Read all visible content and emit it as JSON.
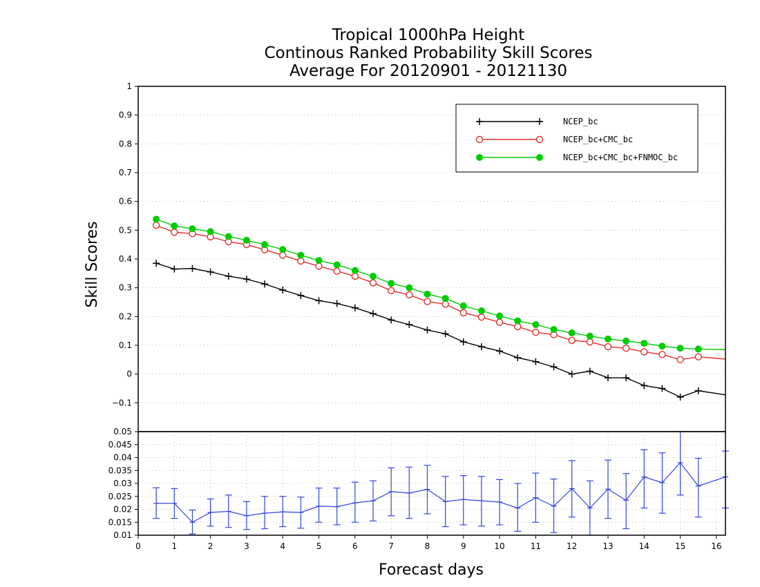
{
  "chart_data": [
    {
      "type": "line",
      "title": [
        "Tropical 1000hPa Height",
        "Continous Ranked Probability Skill Scores",
        "Average For 20120901 - 20121130"
      ],
      "ylabel": "Skill Scores",
      "ylim": [
        -0.2,
        1
      ],
      "yticks": [
        "1",
        "0.9",
        "0.8",
        "0.7",
        "0.6",
        "0.5",
        "0.4",
        "0.3",
        "0.2",
        "0.1",
        "0",
        "−0.1"
      ],
      "yticks_values": [
        1,
        0.9,
        0.8,
        0.7,
        0.6,
        0.5,
        0.4,
        0.3,
        0.2,
        0.1,
        0,
        -0.1
      ],
      "xlim": [
        0,
        16.25
      ],
      "grid": true,
      "legend_position": "top-right",
      "x": [
        0.5,
        1,
        1.5,
        2,
        2.5,
        3,
        3.5,
        4,
        4.5,
        5,
        5.5,
        6,
        6.5,
        7,
        7.5,
        8,
        8.5,
        9,
        9.5,
        10,
        10.5,
        11,
        11.5,
        12,
        12.5,
        13,
        13.5,
        14,
        14.5,
        15,
        15.5,
        16.25
      ],
      "series": [
        {
          "name": "NCEP_bc",
          "color": "#000000",
          "marker": "plus",
          "values": [
            0.385,
            0.365,
            0.367,
            0.355,
            0.34,
            0.33,
            0.313,
            0.292,
            0.273,
            0.255,
            0.245,
            0.23,
            0.21,
            0.188,
            0.172,
            0.153,
            0.14,
            0.112,
            0.095,
            0.08,
            0.057,
            0.043,
            0.025,
            0.0,
            0.01,
            -0.013,
            -0.013,
            -0.04,
            -0.05,
            -0.08,
            -0.058,
            -0.072
          ]
        },
        {
          "name": "NCEP_bc+CMC_bc",
          "color": "#e0302c",
          "marker": "open-circle",
          "values": [
            0.517,
            0.493,
            0.488,
            0.477,
            0.46,
            0.45,
            0.432,
            0.413,
            0.393,
            0.375,
            0.358,
            0.34,
            0.317,
            0.29,
            0.275,
            0.252,
            0.243,
            0.213,
            0.198,
            0.18,
            0.165,
            0.145,
            0.137,
            0.117,
            0.112,
            0.095,
            0.09,
            0.077,
            0.068,
            0.05,
            0.06,
            0.052
          ]
        },
        {
          "name": "NCEP_bc+CMC_bc+FNMOC_bc",
          "color": "#00cc00",
          "marker": "filled-circle",
          "values": [
            0.538,
            0.515,
            0.505,
            0.495,
            0.478,
            0.465,
            0.45,
            0.433,
            0.413,
            0.395,
            0.38,
            0.36,
            0.34,
            0.315,
            0.3,
            0.278,
            0.263,
            0.237,
            0.22,
            0.202,
            0.185,
            0.172,
            0.155,
            0.143,
            0.132,
            0.122,
            0.115,
            0.107,
            0.097,
            0.09,
            0.087,
            0.085
          ]
        }
      ]
    },
    {
      "type": "line",
      "xlabel": "Forecast days",
      "ylim": [
        0.01,
        0.05
      ],
      "yticks": [
        "0.05",
        "0.045",
        "0.04",
        "0.035",
        "0.03",
        "0.025",
        "0.02",
        "0.015",
        "0.01"
      ],
      "yticks_values": [
        0.05,
        0.045,
        0.04,
        0.035,
        0.03,
        0.025,
        0.02,
        0.015,
        0.01
      ],
      "xticks": [
        "0",
        "1",
        "2",
        "3",
        "4",
        "5",
        "6",
        "7",
        "8",
        "9",
        "10",
        "11",
        "12",
        "13",
        "14",
        "15",
        "16"
      ],
      "xticks_values": [
        0,
        1,
        2,
        3,
        4,
        5,
        6,
        7,
        8,
        9,
        10,
        11,
        12,
        13,
        14,
        15,
        16
      ],
      "xlim": [
        0,
        16.25
      ],
      "grid": true,
      "series": [
        {
          "color": "#3344dd",
          "error_bars": true,
          "x": [
            0.5,
            1,
            1.5,
            2,
            2.5,
            3,
            3.5,
            4,
            4.5,
            5,
            5.5,
            6,
            6.5,
            7,
            7.5,
            8,
            8.5,
            9,
            9.5,
            10,
            10.5,
            11,
            11.5,
            12,
            12.5,
            13,
            13.5,
            14,
            14.5,
            15,
            15.5,
            16.25
          ],
          "values": [
            0.0223,
            0.0223,
            0.015,
            0.0188,
            0.0192,
            0.0175,
            0.0185,
            0.019,
            0.0188,
            0.0212,
            0.021,
            0.0225,
            0.0233,
            0.0268,
            0.0263,
            0.0277,
            0.023,
            0.0238,
            0.0233,
            0.0228,
            0.0205,
            0.0245,
            0.0212,
            0.028,
            0.0205,
            0.0278,
            0.0235,
            0.0325,
            0.0303,
            0.038,
            0.029,
            0.0325
          ],
          "lower": [
            0.0165,
            0.0165,
            0.0105,
            0.0135,
            0.013,
            0.0122,
            0.0125,
            0.0133,
            0.0127,
            0.015,
            0.014,
            0.015,
            0.0155,
            0.0175,
            0.0165,
            0.0183,
            0.0133,
            0.014,
            0.0135,
            0.014,
            0.0115,
            0.015,
            0.011,
            0.017,
            0.01,
            0.0165,
            0.0125,
            0.0205,
            0.0185,
            0.0255,
            0.017,
            0.0205
          ],
          "upper": [
            0.0283,
            0.028,
            0.0197,
            0.024,
            0.0255,
            0.023,
            0.025,
            0.025,
            0.0247,
            0.0282,
            0.0282,
            0.0305,
            0.031,
            0.036,
            0.0363,
            0.037,
            0.0327,
            0.033,
            0.0327,
            0.0315,
            0.03,
            0.034,
            0.0317,
            0.0388,
            0.031,
            0.039,
            0.0338,
            0.043,
            0.0418,
            0.05,
            0.0397,
            0.0425
          ]
        }
      ]
    }
  ]
}
